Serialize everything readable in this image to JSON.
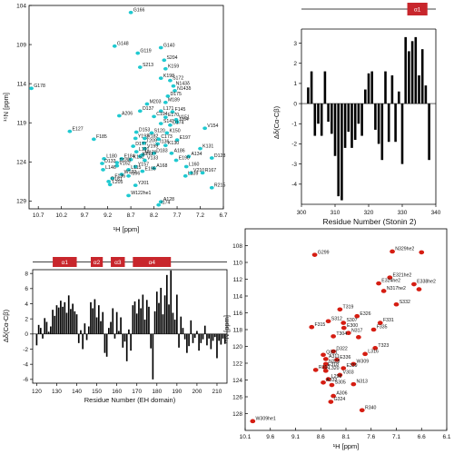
{
  "chart_data": [
    {
      "id": "hsqc-eh",
      "type": "scatter",
      "xlabel": "¹H [ppm]",
      "ylabel": "¹⁵N [ppm]",
      "xlim": [
        10.9,
        6.7
      ],
      "ylim": [
        104,
        130
      ],
      "x_ticks": [
        10.7,
        10.2,
        9.7,
        9.2,
        8.7,
        8.2,
        7.7,
        7.2,
        6.7
      ],
      "y_ticks": [
        104,
        109,
        114,
        119,
        124,
        129
      ],
      "color": "#1fc9d0",
      "peaks": [
        {
          "x": 8.7,
          "y": 104.9,
          "label": "G166"
        },
        {
          "x": 9.05,
          "y": 109.2,
          "label": "G148"
        },
        {
          "x": 8.55,
          "y": 110.1,
          "label": "G119"
        },
        {
          "x": 8.05,
          "y": 109.4,
          "label": "G140"
        },
        {
          "x": 7.98,
          "y": 111.0,
          "label": "S204"
        },
        {
          "x": 7.95,
          "y": 112.1,
          "label": "K159"
        },
        {
          "x": 8.5,
          "y": 111.9,
          "label": "S213"
        },
        {
          "x": 10.85,
          "y": 114.6,
          "label": "G178"
        },
        {
          "x": 8.05,
          "y": 113.3,
          "label": "K198"
        },
        {
          "x": 7.85,
          "y": 113.6,
          "label": "S172"
        },
        {
          "x": 7.78,
          "y": 114.3,
          "label": "N143δ"
        },
        {
          "x": 7.75,
          "y": 114.9,
          "label": "N143δ"
        },
        {
          "x": 7.9,
          "y": 115.6,
          "label": "D175"
        },
        {
          "x": 7.95,
          "y": 116.4,
          "label": "M189"
        },
        {
          "x": 8.35,
          "y": 116.6,
          "label": "M203"
        },
        {
          "x": 8.5,
          "y": 117.5,
          "label": "D137"
        },
        {
          "x": 8.05,
          "y": 117.5,
          "label": "L171"
        },
        {
          "x": 7.8,
          "y": 117.6,
          "label": "F145"
        },
        {
          "x": 8.95,
          "y": 118.1,
          "label": "A206"
        },
        {
          "x": 8.2,
          "y": 118.2,
          "label": "C194"
        },
        {
          "x": 7.95,
          "y": 118.3,
          "label": "E170"
        },
        {
          "x": 7.72,
          "y": 118.6,
          "label": "V151"
        },
        {
          "x": 7.7,
          "y": 118.9,
          "label": "I164"
        },
        {
          "x": 8.05,
          "y": 119.1,
          "label": "S141"
        },
        {
          "x": 7.85,
          "y": 119.3,
          "label": "D174"
        },
        {
          "x": 7.1,
          "y": 119.7,
          "label": "V154"
        },
        {
          "x": 10.02,
          "y": 120.1,
          "label": "E127"
        },
        {
          "x": 8.58,
          "y": 120.2,
          "label": "D153"
        },
        {
          "x": 8.25,
          "y": 120.3,
          "label": "S120"
        },
        {
          "x": 7.92,
          "y": 120.3,
          "label": "K150"
        },
        {
          "x": 9.5,
          "y": 121.1,
          "label": "F185"
        },
        {
          "x": 8.6,
          "y": 121.0,
          "label": "Y193"
        },
        {
          "x": 8.4,
          "y": 121.0,
          "label": "R182"
        },
        {
          "x": 8.1,
          "y": 121.1,
          "label": "C173"
        },
        {
          "x": 7.7,
          "y": 121.2,
          "label": "E197"
        },
        {
          "x": 8.42,
          "y": 121.6,
          "label": "T209"
        },
        {
          "x": 8.12,
          "y": 121.7,
          "label": "I136"
        },
        {
          "x": 7.95,
          "y": 121.9,
          "label": "K130"
        },
        {
          "x": 8.65,
          "y": 122.0,
          "label": "D177"
        },
        {
          "x": 8.4,
          "y": 122.3,
          "label": "V199"
        },
        {
          "x": 7.2,
          "y": 122.3,
          "label": "K131"
        },
        {
          "x": 8.58,
          "y": 122.7,
          "label": "L191"
        },
        {
          "x": 8.2,
          "y": 122.9,
          "label": "D183"
        },
        {
          "x": 7.82,
          "y": 122.9,
          "label": "A186"
        },
        {
          "x": 8.45,
          "y": 123.1,
          "label": "M179"
        },
        {
          "x": 8.5,
          "y": 123.3,
          "label": "K211"
        },
        {
          "x": 7.45,
          "y": 123.3,
          "label": "A134"
        },
        {
          "x": 6.95,
          "y": 123.5,
          "label": "D128"
        },
        {
          "x": 9.28,
          "y": 123.6,
          "label": "L180"
        },
        {
          "x": 8.9,
          "y": 123.6,
          "label": "E184"
        },
        {
          "x": 8.7,
          "y": 123.7,
          "label": "K152"
        },
        {
          "x": 8.4,
          "y": 123.8,
          "label": "V133"
        },
        {
          "x": 7.72,
          "y": 123.8,
          "label": "E190"
        },
        {
          "x": 9.0,
          "y": 124.1,
          "label": "D188"
        },
        {
          "x": 9.32,
          "y": 124.2,
          "label": "D133"
        },
        {
          "x": 9.0,
          "y": 124.5,
          "label": "V162"
        },
        {
          "x": 8.6,
          "y": 124.6,
          "label": "Y157"
        },
        {
          "x": 8.2,
          "y": 124.8,
          "label": "A168"
        },
        {
          "x": 7.5,
          "y": 124.6,
          "label": "L160"
        },
        {
          "x": 9.3,
          "y": 125.0,
          "label": "L146"
        },
        {
          "x": 8.75,
          "y": 125.0,
          "label": "L115"
        },
        {
          "x": 8.45,
          "y": 125.2,
          "label": "E195"
        },
        {
          "x": 7.4,
          "y": 125.4,
          "label": "V210"
        },
        {
          "x": 7.15,
          "y": 125.4,
          "label": "R167"
        },
        {
          "x": 8.9,
          "y": 125.6,
          "label": "W122"
        },
        {
          "x": 8.75,
          "y": 125.8,
          "label": "I196"
        },
        {
          "x": 7.52,
          "y": 125.8,
          "label": "L139"
        },
        {
          "x": 9.1,
          "y": 126.1,
          "label": "F136"
        },
        {
          "x": 9.18,
          "y": 126.5,
          "label": "D181"
        },
        {
          "x": 9.15,
          "y": 126.9,
          "label": "L205"
        },
        {
          "x": 8.6,
          "y": 127.0,
          "label": "Y201"
        },
        {
          "x": 6.95,
          "y": 127.3,
          "label": "R215"
        },
        {
          "x": 8.75,
          "y": 128.3,
          "label": "W122he1"
        },
        {
          "x": 8.05,
          "y": 129.1,
          "label": "A128"
        },
        {
          "x": 8.1,
          "y": 129.5,
          "label": "I174"
        }
      ]
    },
    {
      "id": "csd-stonin",
      "type": "bar",
      "xlabel": "Residue Number (Stonin 2)",
      "ylabel": "Δδ(Cα-Cβ)",
      "xlim": [
        300,
        340
      ],
      "ylim": [
        -5,
        3.7
      ],
      "x_ticks": [
        300,
        310,
        320,
        330,
        340
      ],
      "y_ticks": [
        -4,
        -3,
        -2,
        -1,
        0,
        1,
        2,
        3
      ],
      "secondary_structure": [
        {
          "label": "α1",
          "start": 331.5,
          "end": 337.5
        }
      ],
      "color": "#000000",
      "residues": [
        302,
        303,
        304,
        305,
        306,
        307,
        308,
        309,
        310,
        311,
        312,
        313,
        314,
        315,
        316,
        317,
        318,
        319,
        320,
        321,
        322,
        323,
        324,
        325,
        326,
        327,
        328,
        329,
        330,
        331,
        332,
        333,
        334,
        335,
        336,
        337,
        338
      ],
      "values": [
        0.8,
        1.6,
        -1.6,
        -1.0,
        -1.6,
        1.6,
        -0.9,
        -1.5,
        -2.6,
        -4.6,
        -4.8,
        -2.2,
        -1.4,
        -2.2,
        -1.8,
        -1.0,
        -1.6,
        0.7,
        1.5,
        1.6,
        -1.3,
        -2.0,
        -2.8,
        1.6,
        -1.9,
        1.4,
        -1.9,
        0.6,
        -3.0,
        3.3,
        2.6,
        3.1,
        3.3,
        1.4,
        2.7,
        0.9,
        -2.8
      ]
    },
    {
      "id": "csd-eh",
      "type": "bar",
      "xlabel": "Residue Number (EH domain)",
      "ylabel": "Δδ(Cα-Cβ)",
      "xlim": [
        118,
        215
      ],
      "ylim": [
        -6.5,
        8.5
      ],
      "x_ticks": [
        120,
        130,
        140,
        150,
        160,
        170,
        180,
        190,
        200,
        210
      ],
      "y_ticks": [
        -6,
        -4,
        -2,
        0,
        2,
        4,
        6,
        8
      ],
      "secondary_structure": [
        {
          "label": "α1",
          "start": 128,
          "end": 140
        },
        {
          "label": "α2",
          "start": 147,
          "end": 153
        },
        {
          "label": "α3",
          "start": 157,
          "end": 164
        },
        {
          "label": "α4",
          "start": 168,
          "end": 187
        }
      ],
      "color": "#000000",
      "residues": [
        120,
        121,
        122,
        123,
        124,
        125,
        126,
        127,
        128,
        129,
        130,
        131,
        132,
        133,
        134,
        135,
        136,
        137,
        138,
        139,
        140,
        141,
        142,
        143,
        144,
        145,
        146,
        147,
        148,
        149,
        150,
        151,
        152,
        153,
        154,
        155,
        156,
        157,
        158,
        159,
        160,
        161,
        162,
        163,
        164,
        165,
        166,
        167,
        168,
        169,
        170,
        171,
        172,
        173,
        174,
        175,
        176,
        177,
        178,
        179,
        180,
        181,
        182,
        183,
        184,
        185,
        186,
        187,
        188,
        189,
        190,
        191,
        192,
        193,
        194,
        195,
        196,
        197,
        198,
        199,
        200,
        201,
        202,
        203,
        204,
        205,
        206,
        207,
        208,
        209,
        210,
        211,
        212,
        213,
        214
      ],
      "values": [
        -1.5,
        1.2,
        0.8,
        -0.6,
        2.1,
        1.6,
        0.3,
        1.0,
        3.2,
        2.4,
        3.8,
        3.5,
        4.4,
        3.6,
        4.2,
        2.8,
        5.1,
        3.3,
        4.0,
        3.0,
        2.6,
        -1.2,
        0.5,
        -2.0,
        1.4,
        -0.8,
        1.0,
        4.2,
        3.4,
        4.6,
        2.2,
        3.8,
        1.7,
        2.9,
        -2.5,
        -3.0,
        0.8,
        1.6,
        3.4,
        -0.6,
        2.9,
        0.4,
        2.2,
        -1.8,
        -1.0,
        -3.6,
        0.6,
        -2.2,
        3.8,
        4.3,
        2.7,
        4.6,
        3.4,
        5.2,
        1.9,
        4.5,
        3.6,
        -1.9,
        -6.0,
        3.0,
        5.6,
        4.1,
        6.1,
        2.6,
        5.1,
        7.8,
        3.9,
        8.4,
        2.8,
        1.9,
        5.2,
        -1.8,
        2.3,
        0.8,
        -0.7,
        -2.5,
        -1.6,
        1.8,
        -1.2,
        -0.5,
        0.4,
        -2.2,
        -1.2,
        -0.7,
        1.1,
        -1.5,
        -0.6,
        -2.0,
        -0.9,
        -0.4,
        -3.2,
        -0.9,
        -1.4,
        -0.6,
        -1.3
      ]
    },
    {
      "id": "hsqc-stonin",
      "type": "scatter",
      "xlabel": "¹H [ppm]",
      "ylabel": "¹⁵N [ppm]",
      "xlim": [
        10.1,
        6.1
      ],
      "ylim": [
        106,
        130
      ],
      "x_ticks": [
        10.1,
        9.6,
        9.1,
        8.6,
        8.1,
        7.6,
        7.1,
        6.6,
        6.1
      ],
      "y_ticks": [
        108,
        110,
        112,
        114,
        116,
        118,
        120,
        122,
        124,
        126,
        128
      ],
      "color": "#d51d12",
      "peaks": [
        {
          "x": 8.72,
          "y": 109.1,
          "label": "G299"
        },
        {
          "x": 7.18,
          "y": 108.7,
          "label": "N329he2"
        },
        {
          "x": 6.6,
          "y": 108.8,
          "label": ""
        },
        {
          "x": 7.23,
          "y": 111.8,
          "label": "E321he2"
        },
        {
          "x": 7.45,
          "y": 112.5,
          "label": "E324he2"
        },
        {
          "x": 6.75,
          "y": 112.6,
          "label": "E338he2"
        },
        {
          "x": 6.65,
          "y": 113.2,
          "label": ""
        },
        {
          "x": 7.35,
          "y": 113.4,
          "label": "N317he2"
        },
        {
          "x": 7.1,
          "y": 115.0,
          "label": "S332"
        },
        {
          "x": 8.22,
          "y": 115.6,
          "label": "T319"
        },
        {
          "x": 7.88,
          "y": 116.4,
          "label": "E326"
        },
        {
          "x": 8.45,
          "y": 117.0,
          "label": "S312"
        },
        {
          "x": 8.15,
          "y": 117.2,
          "label": "S307"
        },
        {
          "x": 7.42,
          "y": 117.2,
          "label": "F331"
        },
        {
          "x": 8.78,
          "y": 117.7,
          "label": "F315"
        },
        {
          "x": 8.14,
          "y": 117.8,
          "label": "E300"
        },
        {
          "x": 7.55,
          "y": 118.0,
          "label": "F335"
        },
        {
          "x": 8.05,
          "y": 118.4,
          "label": "N317"
        },
        {
          "x": 8.35,
          "y": 118.8,
          "label": "T304"
        },
        {
          "x": 7.85,
          "y": 118.9,
          "label": ""
        },
        {
          "x": 7.52,
          "y": 120.2,
          "label": "T323"
        },
        {
          "x": 8.35,
          "y": 120.6,
          "label": "D322"
        },
        {
          "x": 7.72,
          "y": 120.9,
          "label": "L316"
        },
        {
          "x": 8.55,
          "y": 121.0,
          "label": "Q321"
        },
        {
          "x": 8.5,
          "y": 121.5,
          "label": "A311"
        },
        {
          "x": 8.28,
          "y": 121.6,
          "label": "E336"
        },
        {
          "x": 8.5,
          "y": 122.1,
          "label": "N328"
        },
        {
          "x": 7.95,
          "y": 122.1,
          "label": "W309"
        },
        {
          "x": 8.52,
          "y": 122.5,
          "label": "E318"
        },
        {
          "x": 8.15,
          "y": 122.6,
          "label": "E339"
        },
        {
          "x": 8.7,
          "y": 122.8,
          "label": "R310"
        },
        {
          "x": 8.5,
          "y": 122.9,
          "label": "L320"
        },
        {
          "x": 8.22,
          "y": 123.4,
          "label": "V303"
        },
        {
          "x": 8.45,
          "y": 123.9,
          "label": "L298"
        },
        {
          "x": 8.55,
          "y": 124.3,
          "label": "A332"
        },
        {
          "x": 8.38,
          "y": 124.6,
          "label": "S305"
        },
        {
          "x": 7.95,
          "y": 124.5,
          "label": "N313"
        },
        {
          "x": 8.35,
          "y": 125.9,
          "label": "A306"
        },
        {
          "x": 8.4,
          "y": 126.6,
          "label": "G324"
        },
        {
          "x": 7.78,
          "y": 127.6,
          "label": "R340"
        },
        {
          "x": 9.95,
          "y": 128.9,
          "label": "W309he1"
        }
      ]
    }
  ]
}
